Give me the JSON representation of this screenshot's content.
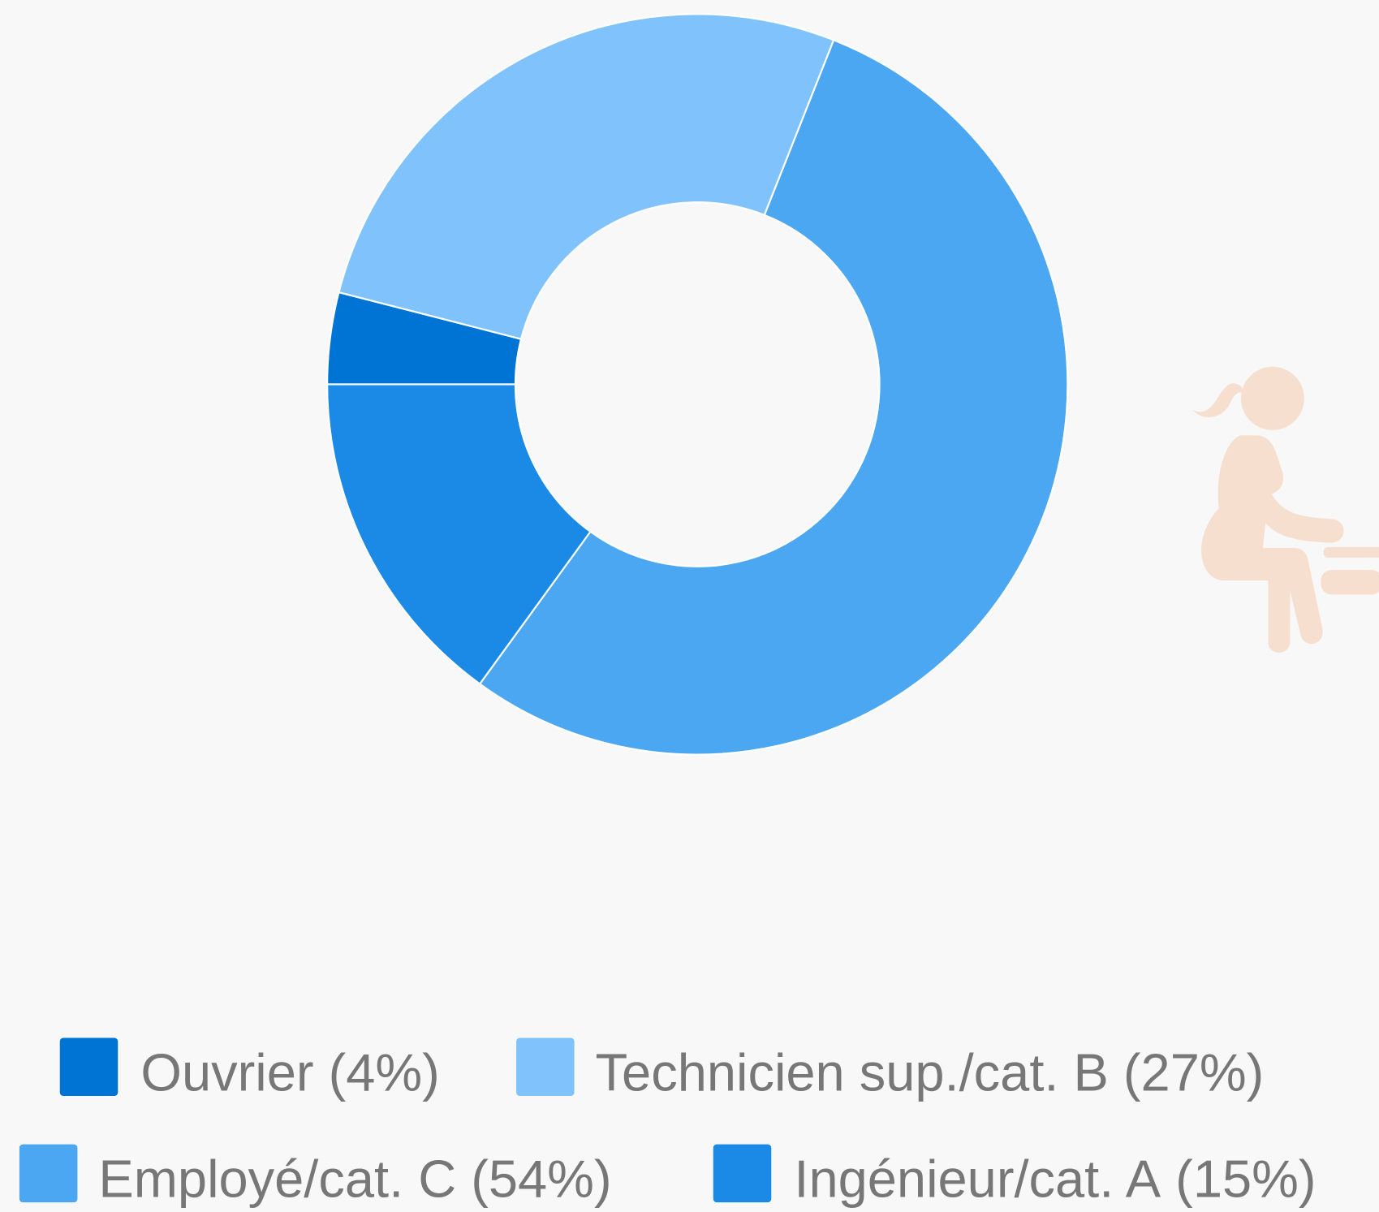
{
  "chart_data": {
    "type": "donut",
    "categories": [
      "Ouvrier",
      "Technicien sup./cat. B",
      "Employé/cat. C",
      "Ingénieur/cat. A"
    ],
    "values": [
      4,
      27,
      54,
      15
    ],
    "value_labels": [
      "(4%)",
      "(27%)",
      "(54%)",
      "(15%)"
    ],
    "colors": [
      "#0074d4",
      "#80c3fc",
      "#4ba7f2",
      "#1a8ae6"
    ],
    "legend": "bottom"
  }
}
